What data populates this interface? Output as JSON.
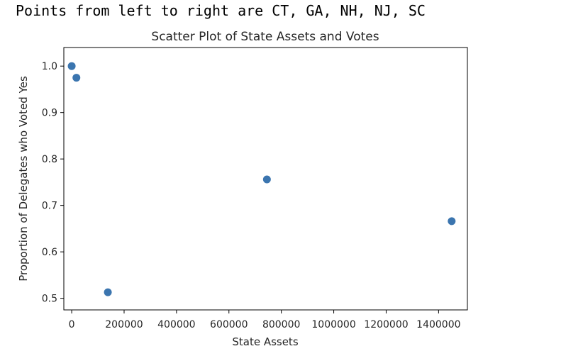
{
  "caption": "Points from left to right are CT, GA, NH, NJ, SC",
  "chart_data": {
    "type": "scatter",
    "title": "Scatter Plot of State Assets and Votes",
    "xlabel": "State Assets",
    "ylabel": "Proportion of Delegates who Voted Yes",
    "xlim": [
      -30000,
      1510000
    ],
    "ylim": [
      0.475,
      1.04
    ],
    "x_ticks": [
      0,
      200000,
      400000,
      600000,
      800000,
      1000000,
      1200000,
      1400000
    ],
    "x_tick_labels": [
      "0",
      "200000",
      "400000",
      "600000",
      "800000",
      "1000000",
      "1200000",
      "1400000"
    ],
    "y_ticks": [
      0.5,
      0.6,
      0.7,
      0.8,
      0.9,
      1.0
    ],
    "y_tick_labels": [
      "0.5",
      "0.6",
      "0.7",
      "0.8",
      "0.9",
      "1.0"
    ],
    "grid": false,
    "marker_color": "#3b75af",
    "points": [
      {
        "x": 0,
        "y": 1.0
      },
      {
        "x": 18000,
        "y": 0.975
      },
      {
        "x": 138000,
        "y": 0.513
      },
      {
        "x": 745000,
        "y": 0.756
      },
      {
        "x": 1450000,
        "y": 0.666
      }
    ]
  }
}
